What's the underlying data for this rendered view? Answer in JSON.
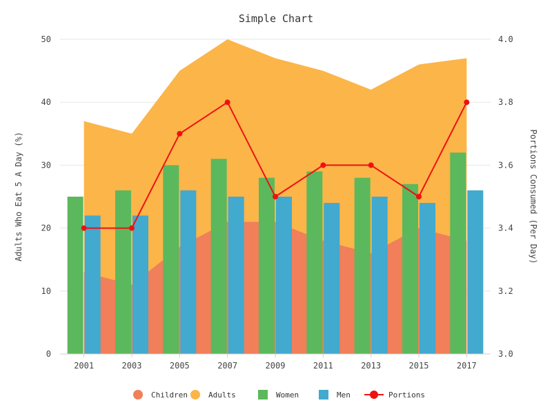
{
  "chart_data": {
    "type": "bar",
    "title": "Simple Chart",
    "categories": [
      "2001",
      "2003",
      "2005",
      "2007",
      "2009",
      "2011",
      "2013",
      "2015",
      "2017"
    ],
    "ylabel_left": "Adults Who Eat 5 A Day (%)",
    "ylabel_right": "Portions Consumed (Per Day)",
    "ylim_left": [
      0,
      50
    ],
    "ylim_right": [
      3.0,
      4.0
    ],
    "yticks_left": [
      "0",
      "10",
      "20",
      "30",
      "40",
      "50"
    ],
    "yticks_right": [
      "3.0",
      "3.2",
      "3.4",
      "3.6",
      "3.8",
      "4.0"
    ],
    "grid": true,
    "legend_position": "bottom",
    "series": [
      {
        "name": "Children",
        "type": "area",
        "axis": "left",
        "color": "#f07f5a",
        "values": [
          13,
          11,
          17,
          21,
          21,
          18,
          16,
          20,
          18
        ]
      },
      {
        "name": "Adults",
        "type": "area",
        "axis": "left",
        "color": "#fbb549",
        "values": [
          37,
          35,
          45,
          50,
          47,
          45,
          42,
          46,
          47
        ]
      },
      {
        "name": "Women",
        "type": "bar",
        "axis": "left",
        "color": "#5cb85c",
        "values": [
          25,
          26,
          30,
          31,
          28,
          29,
          28,
          27,
          32
        ]
      },
      {
        "name": "Men",
        "type": "bar",
        "axis": "left",
        "color": "#42a9cf",
        "values": [
          22,
          22,
          26,
          25,
          25,
          24,
          25,
          24,
          26
        ]
      },
      {
        "name": "Portions",
        "type": "line",
        "axis": "right",
        "color": "#ee1111",
        "values": [
          3.4,
          3.4,
          3.7,
          3.8,
          3.5,
          3.6,
          3.6,
          3.5,
          3.8
        ]
      }
    ]
  }
}
